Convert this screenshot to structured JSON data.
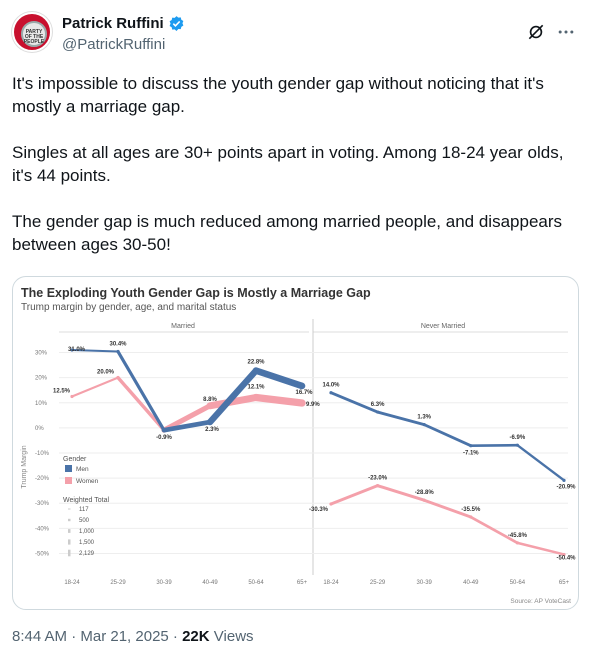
{
  "author": {
    "name": "Patrick Ruffini",
    "handle": "@PatrickRuffini",
    "avatar_text": "PARTY OF THE PEOPLE"
  },
  "tweet": {
    "paragraphs": [
      "It's impossible to discuss the youth gender gap without noticing that it's mostly a marriage gap.",
      "Singles at all ages are 30+ points apart in voting. Among 18-24 year olds, it's 44 points.",
      "The gender gap is much reduced among married people, and disappears between ages 30-50!"
    ],
    "time": "8:44 AM · Mar 21, 2025 · ",
    "views_count": "22K",
    "views_label": " Views"
  },
  "icons": {
    "grok": "grok-icon",
    "more": "more-icon",
    "verified": "verified-badge-icon"
  },
  "colors": {
    "men": "#4a73a8",
    "women": "#f4a0aa",
    "accent": "#1d9bf0"
  },
  "chart_data": {
    "type": "line",
    "title": "The Exploding Youth Gender Gap is Mostly a Marriage Gap",
    "subtitle": "Trump margin by gender, age, and marital status",
    "ylabel": "Trump Margin",
    "source": "Source: AP VoteCast",
    "ylim": [
      -55,
      33
    ],
    "yticks": [
      "30%",
      "20%",
      "10%",
      "0%",
      "-10%",
      "-20%",
      "-30%",
      "-40%",
      "-50%"
    ],
    "categories": [
      "18-24",
      "25-29",
      "30-39",
      "40-49",
      "50-64",
      "65+"
    ],
    "panels": [
      {
        "name": "Married",
        "series": [
          {
            "name": "Men",
            "values": [
              31.0,
              30.4,
              -0.9,
              2.3,
              22.8,
              16.7
            ],
            "labels": [
              "31.0%",
              "30.4%",
              "-0.9%",
              "2.3%",
              "22.8%",
              "16.7%"
            ],
            "weights": [
              0.3,
              0.6,
              1.6,
              2.3,
              3.4,
              2.6
            ]
          },
          {
            "name": "Women",
            "values": [
              12.5,
              20.0,
              -0.9,
              8.8,
              12.1,
              9.9
            ],
            "labels": [
              "12.5%",
              "20.0%",
              "",
              "8.8%",
              "12.1%",
              "9.9%"
            ],
            "weights": [
              0.3,
              0.7,
              1.8,
              2.6,
              3.8,
              3.0
            ]
          }
        ]
      },
      {
        "name": "Never Married",
        "series": [
          {
            "name": "Men",
            "values": [
              14.0,
              6.3,
              1.3,
              -7.1,
              -6.9,
              -20.9
            ],
            "labels": [
              "14.0%",
              "6.3%",
              "1.3%",
              "-7.1%",
              "-6.9%",
              "-20.9%"
            ],
            "weights": [
              1.0,
              0.9,
              1.0,
              0.8,
              0.7,
              0.6
            ]
          },
          {
            "name": "Women",
            "values": [
              -30.3,
              -23.0,
              -28.8,
              -35.5,
              -45.8,
              -50.4
            ],
            "labels": [
              "-30.3%",
              "-23.0%",
              "-28.8%",
              "-35.5%",
              "-45.8%",
              "-50.4%"
            ],
            "weights": [
              1.0,
              1.0,
              1.0,
              0.9,
              0.8,
              0.7
            ]
          }
        ]
      }
    ],
    "legend": {
      "title": "Gender",
      "items": [
        "Men",
        "Women"
      ],
      "weight_title": "Weighted Total",
      "weight_values": [
        "117",
        "500",
        "1,000",
        "1,500",
        "2,129"
      ]
    }
  }
}
